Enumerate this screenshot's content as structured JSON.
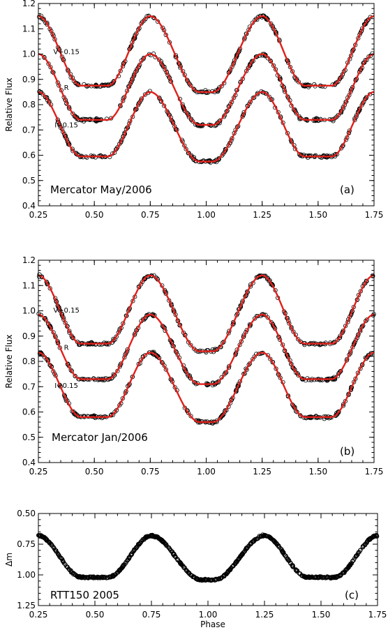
{
  "chart_data": [
    {
      "id": "a",
      "type": "scatter",
      "xlabel": "",
      "ylabel": "Relative Flux",
      "xlim": [
        0.25,
        1.75
      ],
      "ylim": [
        0.4,
        1.2
      ],
      "x_ticks": [
        "0.25",
        "0.50",
        "0.75",
        "1.00",
        "1.25",
        "1.50",
        "1.75"
      ],
      "y_ticks": [
        "0.4",
        "0.5",
        "0.6",
        "0.7",
        "0.8",
        "0.9",
        "1.0",
        "1.1",
        "1.2"
      ],
      "annotation_left": "Mercator May/2006",
      "annotation_right": "(a)",
      "series": [
        {
          "name": "V+0.15",
          "max": 1.15,
          "min_primary": 0.85,
          "min_secondary": 0.875
        },
        {
          "name": "R",
          "max": 1.0,
          "min_primary": 0.72,
          "min_secondary": 0.74
        },
        {
          "name": "I−0.15",
          "max": 0.85,
          "min_primary": 0.575,
          "min_secondary": 0.595
        }
      ],
      "model_color": "#e0201a"
    },
    {
      "id": "b",
      "type": "scatter",
      "xlabel": "",
      "ylabel": "Relative Flux",
      "xlim": [
        0.25,
        1.75
      ],
      "ylim": [
        0.4,
        1.2
      ],
      "x_ticks": [
        "0.25",
        "0.50",
        "0.75",
        "1.00",
        "1.25",
        "1.50",
        "1.75"
      ],
      "y_ticks": [
        "0.4",
        "0.5",
        "0.6",
        "0.7",
        "0.8",
        "0.9",
        "1.0",
        "1.1",
        "1.2"
      ],
      "annotation_left": "Mercator Jan/2006",
      "annotation_right": "(b)",
      "series": [
        {
          "name": "V+0.15",
          "max": 1.14,
          "min_primary": 0.84,
          "min_secondary": 0.87
        },
        {
          "name": "R",
          "max": 0.985,
          "min_primary": 0.71,
          "min_secondary": 0.73
        },
        {
          "name": "I−0.15",
          "max": 0.835,
          "min_primary": 0.56,
          "min_secondary": 0.58
        }
      ],
      "model_color": "#e0201a"
    },
    {
      "id": "c",
      "type": "scatter",
      "xlabel": "Phase",
      "ylabel": "Δm",
      "xlim": [
        0.25,
        1.75
      ],
      "ylim": [
        1.25,
        0.5
      ],
      "x_ticks": [
        "0.25",
        "0.50",
        "0.75",
        "1.00",
        "1.25",
        "1.50",
        "1.75"
      ],
      "y_ticks": [
        "0.50",
        "0.75",
        "1.00",
        "1.25"
      ],
      "annotation_left": "RTT150 2005",
      "annotation_right": "(c)",
      "series": [
        {
          "name": "",
          "brightest": 0.68,
          "primary_min": 1.04,
          "secondary_min": 1.02
        }
      ]
    }
  ]
}
